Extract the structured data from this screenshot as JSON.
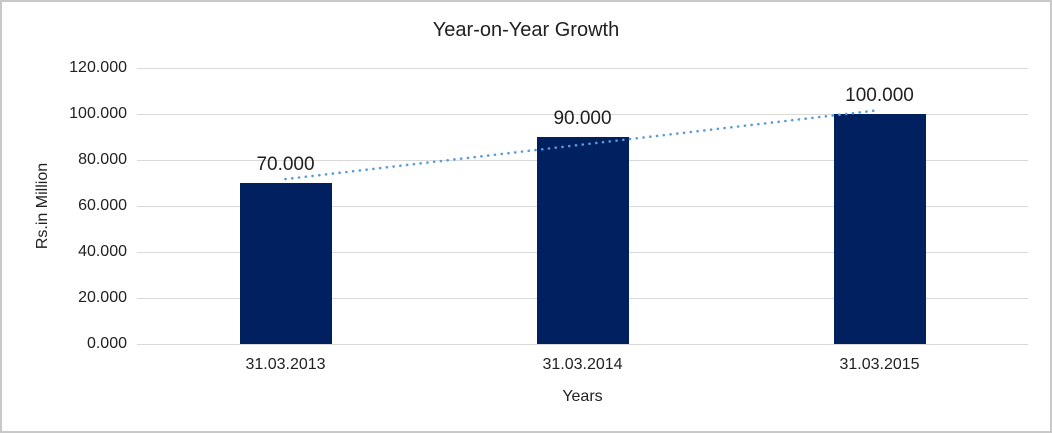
{
  "chart_data": {
    "type": "bar",
    "title": "Year-on-Year Growth",
    "categories": [
      "31.03.2013",
      "31.03.2014",
      "31.03.2015"
    ],
    "values": [
      70,
      90,
      100
    ],
    "data_labels": [
      "70.000",
      "90.000",
      "100.000"
    ],
    "xlabel": "Years",
    "ylabel": "Rs.in Million",
    "ylim": [
      0,
      120
    ],
    "yticks": [
      0,
      20,
      40,
      60,
      80,
      100,
      120
    ],
    "ytick_labels": [
      "0.000",
      "20.000",
      "40.000",
      "60.000",
      "80.000",
      "100.000",
      "120.000"
    ],
    "grid": true,
    "legend": "none",
    "trendline": {
      "type": "linear",
      "style": "dotted",
      "start_value": 71.7,
      "end_value": 101.7
    },
    "colors": {
      "bar": "#002060",
      "trendline": "#5b9bd5",
      "gridline": "#d9d9d9",
      "text": "#212121",
      "frame_border": "#c8c8c8",
      "background": "#ffffff"
    }
  }
}
